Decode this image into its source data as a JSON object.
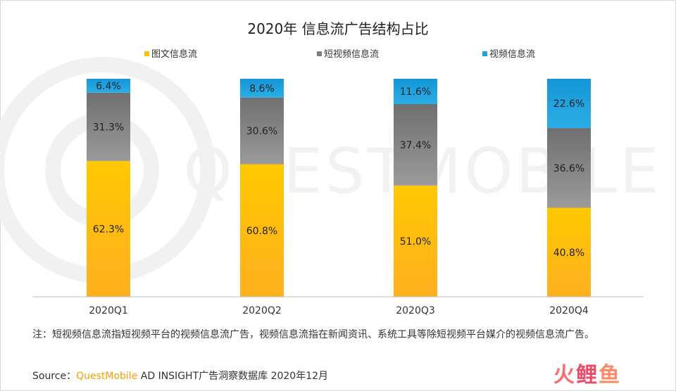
{
  "chart_data": {
    "type": "bar",
    "stacked": true,
    "title": "2020年 信息流广告结构占比",
    "categories": [
      "2020Q1",
      "2020Q2",
      "2020Q3",
      "2020Q4"
    ],
    "series": [
      {
        "name": "图文信息流",
        "color": "#ffc000",
        "values": [
          62.3,
          60.8,
          51.0,
          40.8
        ],
        "labels": [
          "62.3%",
          "60.8%",
          "51.0%",
          "40.8%"
        ]
      },
      {
        "name": "短视频信息流",
        "color": "#7f7f7f",
        "values": [
          31.3,
          30.6,
          37.4,
          36.6
        ],
        "labels": [
          "31.3%",
          "30.6%",
          "37.4%",
          "36.6%"
        ]
      },
      {
        "name": "视频信息流",
        "color": "#1fa0dc",
        "values": [
          6.4,
          8.6,
          11.6,
          22.6
        ],
        "labels": [
          "6.4%",
          "8.6%",
          "11.6%",
          "22.6%"
        ]
      }
    ],
    "ylim": [
      0,
      100
    ],
    "legend": "top",
    "grid": false
  },
  "note": "注：短视频信息流指短视频平台的视频信息流广告，视频信息流指在新闻资讯、系统工具等除短视频平台媒介的视频信息流广告。",
  "source": {
    "prefix": "Source：",
    "brand": "QuestMobile",
    "rest": " AD INSIGHT广告洞察数据库 2020年12月"
  },
  "watermark": "QUESTMOBILE",
  "logo": {
    "c1": "火",
    "c2": "鲤",
    "c3": "鱼"
  }
}
